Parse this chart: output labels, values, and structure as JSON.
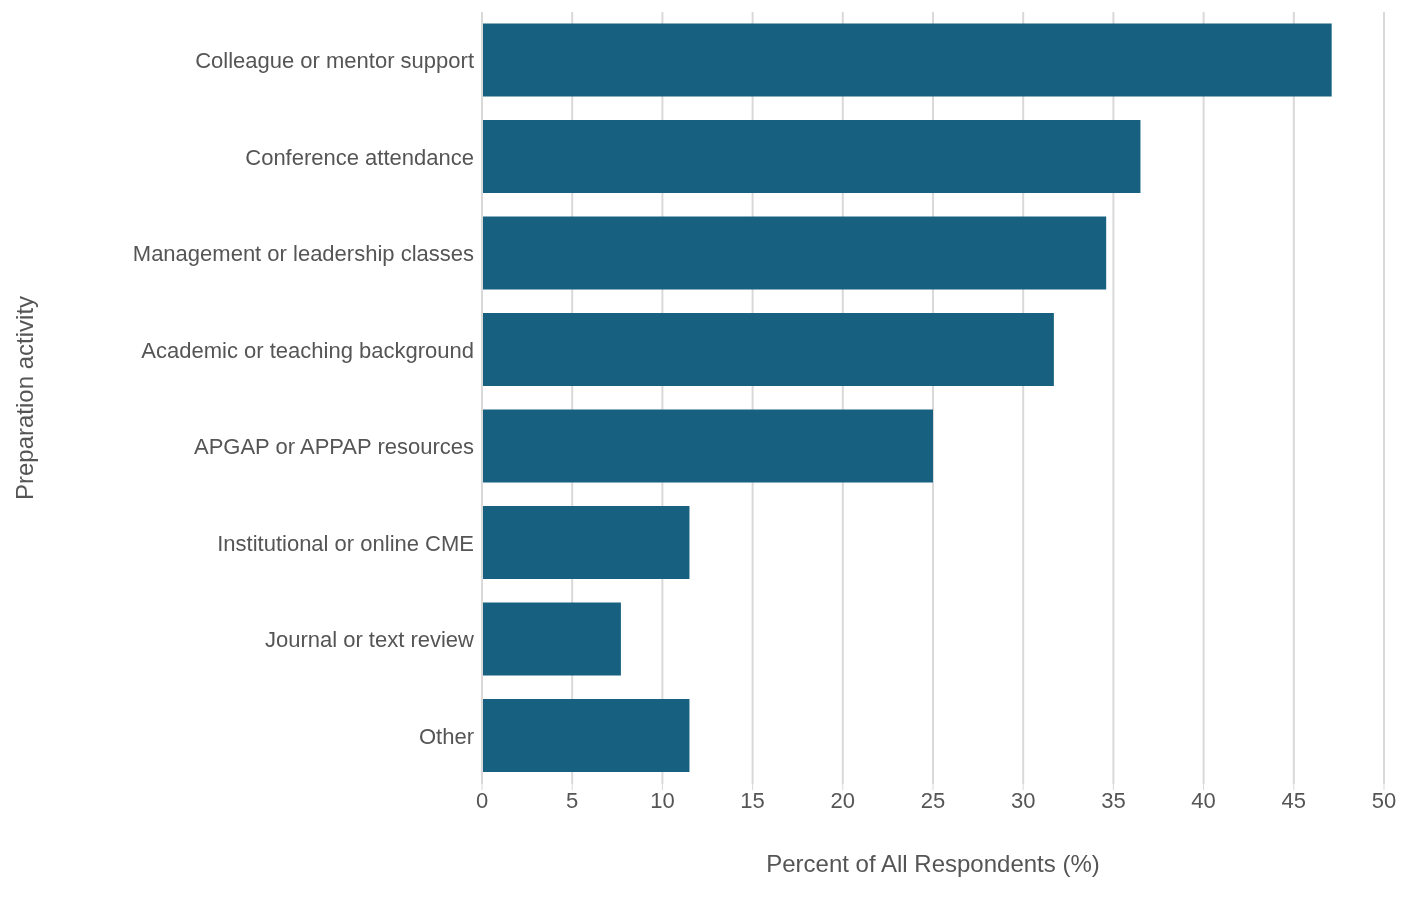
{
  "chart_data": {
    "type": "bar",
    "orientation": "horizontal",
    "xlabel": "Percent of All Respondents (%)",
    "ylabel": "Preparation activity",
    "categories": [
      "Colleague or mentor support",
      "Conference attendance",
      "Management or leadership classes",
      "Academic or teaching background",
      "APGAP or APPAP resources",
      "Institutional or online CME",
      "Journal or text review",
      "Other"
    ],
    "values": [
      47.1,
      36.5,
      34.6,
      31.7,
      25.0,
      11.5,
      7.7,
      11.5
    ],
    "color": "#17607f",
    "xlim": [
      0,
      50
    ],
    "xticks": [
      0,
      5,
      10,
      15,
      20,
      25,
      30,
      35,
      40,
      45,
      50
    ],
    "grid": "x"
  }
}
